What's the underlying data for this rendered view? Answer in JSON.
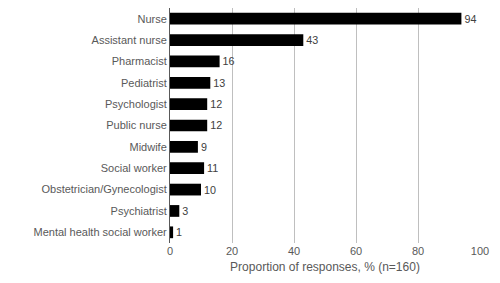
{
  "chart_data": {
    "type": "bar",
    "orientation": "horizontal",
    "x_label": "Proportion of responses, % (n=160)",
    "categories": [
      "Nurse",
      "Assistant nurse",
      "Pharmacist",
      "Pediatrist",
      "Psychologist",
      "Public nurse",
      "Midwife",
      "Social worker",
      "Obstetrician/Gynecologist",
      "Psychiatrist",
      "Mental health social worker"
    ],
    "values": [
      94,
      43,
      16,
      13,
      12,
      12,
      9,
      11,
      10,
      3,
      1
    ],
    "color": "#000000",
    "xlim": [
      0,
      100
    ],
    "xticks": [
      0,
      20,
      40,
      60,
      80,
      100
    ],
    "grid": true,
    "data_labels": true
  }
}
